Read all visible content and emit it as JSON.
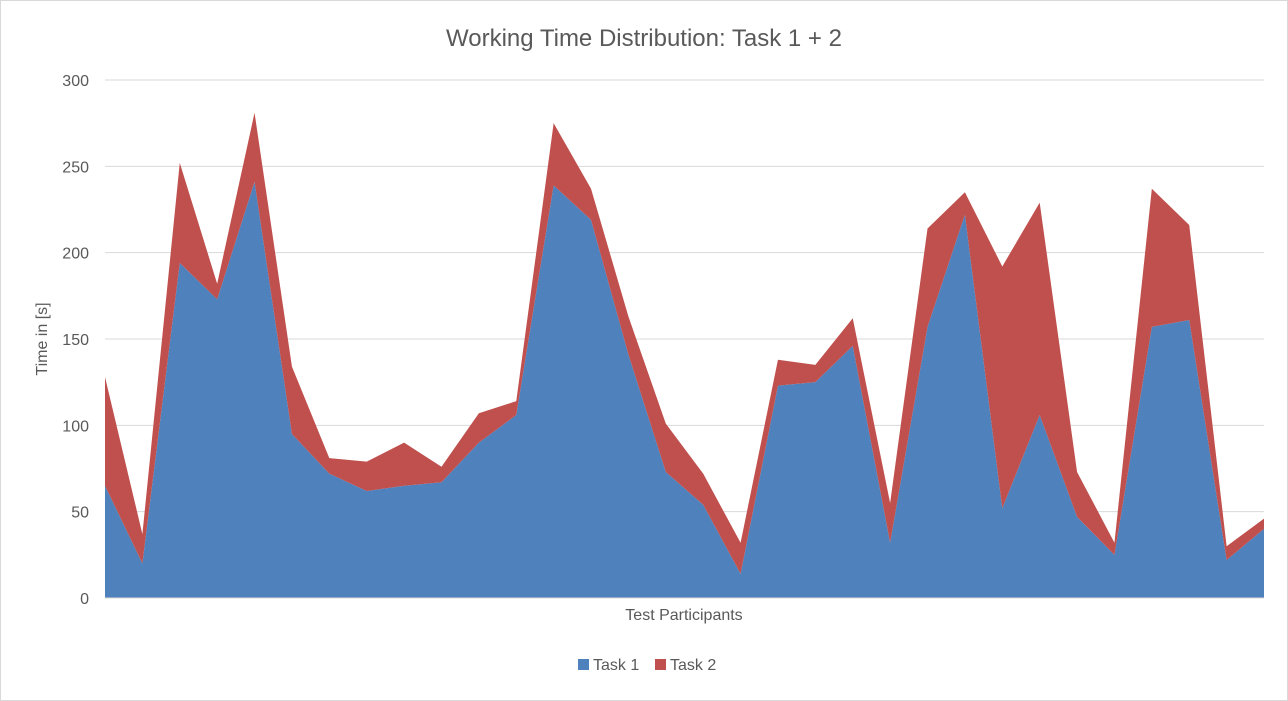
{
  "chart_data": {
    "type": "area",
    "stacked": true,
    "title": "Working Time Distribution: Task 1 + 2",
    "xlabel": "Test Participants",
    "ylabel": "Time in [s]",
    "ylim": [
      0,
      300
    ],
    "yticks": [
      0,
      50,
      100,
      150,
      200,
      250,
      300
    ],
    "grid": true,
    "legend_position": "bottom",
    "series": [
      {
        "name": "Task 1",
        "color": "#4F81BD",
        "values": [
          65,
          20,
          194,
          173,
          241,
          95,
          72,
          62,
          65,
          67,
          90,
          106,
          239,
          219,
          141,
          73,
          54,
          14,
          123,
          125,
          146,
          32,
          157,
          222,
          52,
          106,
          47,
          25,
          157,
          161,
          22,
          40
        ]
      },
      {
        "name": "Task 2",
        "color": "#C0504D",
        "values": [
          63,
          17,
          58,
          9,
          40,
          39,
          9,
          17,
          25,
          9,
          17,
          8,
          36,
          18,
          22,
          28,
          18,
          18,
          15,
          10,
          16,
          23,
          57,
          13,
          140,
          123,
          26,
          7,
          80,
          55,
          8,
          6
        ]
      }
    ]
  }
}
